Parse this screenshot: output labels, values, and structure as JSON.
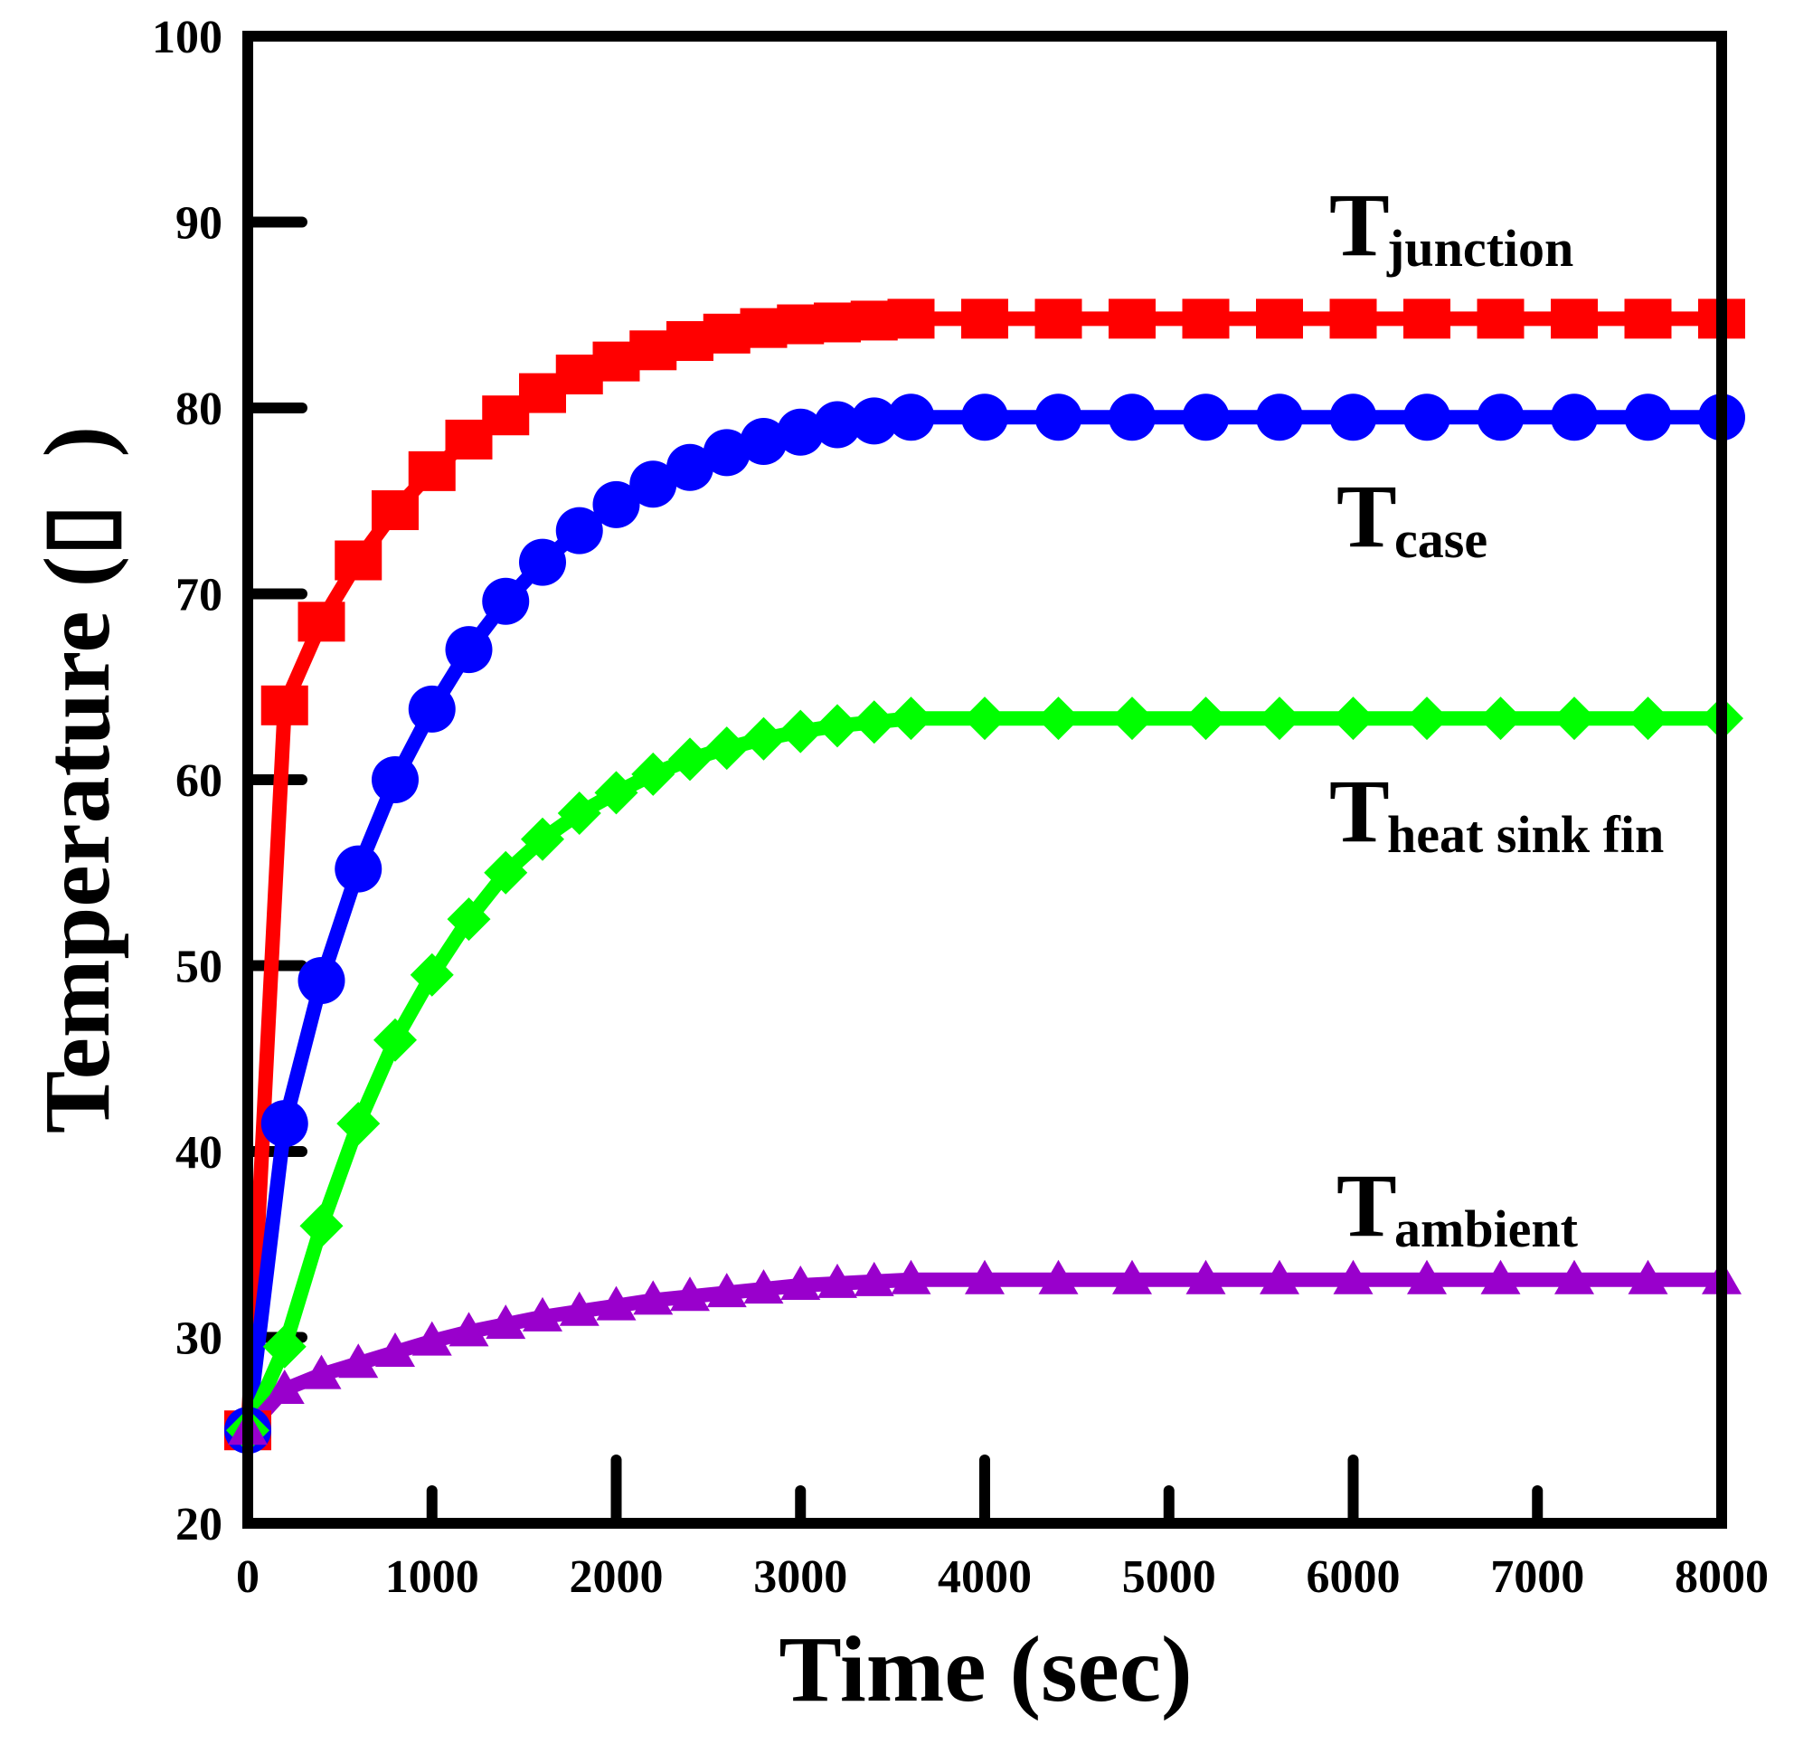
{
  "chart_data": {
    "type": "line",
    "xlabel": "Time (sec)",
    "ylabel": "Temperature (▯ )",
    "xlim": [
      0,
      8000
    ],
    "ylim": [
      20,
      100
    ],
    "x_ticks": [
      0,
      1000,
      2000,
      3000,
      4000,
      5000,
      6000,
      7000,
      8000
    ],
    "y_ticks": [
      20,
      30,
      40,
      50,
      60,
      70,
      80,
      90,
      100
    ],
    "grid": false,
    "legend": "inline labels near right end of each series",
    "series": [
      {
        "name": "junction",
        "label_main": "T",
        "label_sub": "junction",
        "color": "#ff0000",
        "marker": "square",
        "x": [
          0,
          200,
          400,
          600,
          800,
          1000,
          1200,
          1400,
          1600,
          1800,
          2000,
          2200,
          2400,
          2600,
          2800,
          3000,
          3200,
          3400,
          3600,
          4000,
          4400,
          4800,
          5200,
          5600,
          6000,
          6400,
          6800,
          7200,
          7600,
          8000
        ],
        "y": [
          25,
          64,
          68.5,
          71.8,
          74.5,
          76.6,
          78.3,
          79.6,
          80.8,
          81.8,
          82.5,
          83.1,
          83.6,
          84.0,
          84.3,
          84.5,
          84.6,
          84.7,
          84.8,
          84.8,
          84.8,
          84.8,
          84.8,
          84.8,
          84.8,
          84.8,
          84.8,
          84.8,
          84.8,
          84.8
        ]
      },
      {
        "name": "case",
        "label_main": "T",
        "label_sub": "case",
        "color": "#0000ff",
        "marker": "circle",
        "x": [
          0,
          200,
          400,
          600,
          800,
          1000,
          1200,
          1400,
          1600,
          1800,
          2000,
          2200,
          2400,
          2600,
          2800,
          3000,
          3200,
          3400,
          3600,
          4000,
          4400,
          4800,
          5200,
          5600,
          6000,
          6400,
          6800,
          7200,
          7600,
          8000
        ],
        "y": [
          25,
          41.5,
          49.2,
          55.2,
          60.0,
          63.8,
          67.0,
          69.6,
          71.7,
          73.4,
          74.8,
          75.9,
          76.8,
          77.6,
          78.2,
          78.7,
          79.1,
          79.3,
          79.5,
          79.5,
          79.5,
          79.5,
          79.5,
          79.5,
          79.5,
          79.5,
          79.5,
          79.5,
          79.5,
          79.5
        ]
      },
      {
        "name": "heat sink fin",
        "label_main": "T",
        "label_sub": "heat sink fin",
        "color": "#00ff00",
        "marker": "diamond",
        "x": [
          0,
          200,
          400,
          600,
          800,
          1000,
          1200,
          1400,
          1600,
          1800,
          2000,
          2200,
          2400,
          2600,
          2800,
          3000,
          3200,
          3400,
          3600,
          4000,
          4400,
          4800,
          5200,
          5600,
          6000,
          6400,
          6800,
          7200,
          7600,
          8000
        ],
        "y": [
          25,
          29.5,
          36.0,
          41.5,
          46.0,
          49.5,
          52.5,
          55.0,
          56.8,
          58.2,
          59.3,
          60.3,
          61.1,
          61.7,
          62.2,
          62.6,
          62.9,
          63.1,
          63.3,
          63.3,
          63.3,
          63.3,
          63.3,
          63.3,
          63.3,
          63.3,
          63.3,
          63.3,
          63.3,
          63.3
        ]
      },
      {
        "name": "ambient",
        "label_main": "T",
        "label_sub": "ambient",
        "color": "#9900cc",
        "marker": "triangle",
        "x": [
          0,
          200,
          400,
          600,
          800,
          1000,
          1200,
          1400,
          1600,
          1800,
          2000,
          2200,
          2400,
          2600,
          2800,
          3000,
          3200,
          3400,
          3600,
          4000,
          4400,
          4800,
          5200,
          5600,
          6000,
          6400,
          6800,
          7200,
          7600,
          8000
        ],
        "y": [
          25,
          27.2,
          28.0,
          28.6,
          29.2,
          29.8,
          30.3,
          30.7,
          31.1,
          31.4,
          31.7,
          32.0,
          32.2,
          32.4,
          32.6,
          32.8,
          32.9,
          33.0,
          33.1,
          33.1,
          33.1,
          33.1,
          33.1,
          33.1,
          33.1,
          33.1,
          33.1,
          33.1,
          33.1,
          33.1
        ]
      }
    ]
  }
}
